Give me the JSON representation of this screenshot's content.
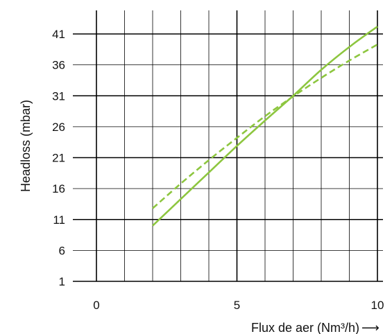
{
  "chart_data": {
    "type": "line",
    "title": "",
    "xlabel": "Flux de aer (Nm³/h)",
    "ylabel": "Headloss (mbar)",
    "xlabel_suffix": "⟶",
    "xlim": [
      0,
      10
    ],
    "ylim": [
      1,
      43
    ],
    "xticks": [
      0,
      5,
      10
    ],
    "yticks": [
      1,
      6,
      11,
      16,
      21,
      26,
      31,
      36,
      41
    ],
    "grid": true,
    "legend": "none",
    "series": [
      {
        "style": "solid",
        "color": "#8dc63f",
        "x": [
          2,
          3,
          4,
          5,
          6,
          7,
          8,
          9,
          10
        ],
        "y": [
          10,
          14.3,
          18.6,
          22.9,
          27,
          31,
          35.2,
          38.9,
          42.2
        ]
      },
      {
        "style": "dashed",
        "color": "#8dc63f",
        "x": [
          2,
          3,
          4,
          5,
          6,
          7,
          8,
          9,
          10
        ],
        "y": [
          12.8,
          16.8,
          20.6,
          24.2,
          27.7,
          30.9,
          33.9,
          36.7,
          39.3
        ]
      }
    ]
  }
}
